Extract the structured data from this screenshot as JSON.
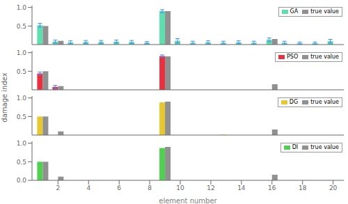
{
  "chart_data": [
    {
      "type": "bar",
      "x": [
        1,
        2,
        3,
        4,
        5,
        6,
        7,
        8,
        9,
        10,
        11,
        12,
        13,
        14,
        15,
        16,
        17,
        18,
        19,
        20
      ],
      "series": [
        {
          "name": "GA",
          "color": "#5fdfb0",
          "values": [
            0.52,
            0.08,
            0.06,
            0.07,
            0.07,
            0.08,
            0.07,
            0.05,
            0.9,
            0.1,
            0.05,
            0.06,
            0.05,
            0.06,
            0.05,
            0.13,
            0.05,
            0.04,
            0.04,
            0.09
          ],
          "errors": [
            0.05,
            0.04,
            0.04,
            0.04,
            0.04,
            0.04,
            0.04,
            0.03,
            0.04,
            0.06,
            0.04,
            0.04,
            0.04,
            0.04,
            0.04,
            0.05,
            0.04,
            0.03,
            0.03,
            0.05
          ]
        },
        {
          "name": "true value",
          "color": "#909090",
          "values": [
            0.5,
            0.1,
            0,
            0,
            0,
            0,
            0,
            0,
            0.9,
            0,
            0,
            0,
            0,
            0,
            0,
            0.15,
            0,
            0,
            0,
            0
          ]
        }
      ],
      "xlim": [
        0.3,
        20.7
      ],
      "xticks": [
        2,
        4,
        6,
        8,
        10,
        12,
        14,
        16,
        18,
        20
      ],
      "ylim": [
        0,
        1.05
      ],
      "yticks": [
        {
          "value": 0,
          "label": "0.0"
        },
        {
          "value": 0.5,
          "label": "0.5"
        },
        {
          "value": 1,
          "label": "1.0"
        }
      ],
      "tick_labels": "y",
      "grid": false,
      "legend": "upper right"
    },
    {
      "type": "bar",
      "x": [
        1,
        2,
        3,
        4,
        5,
        6,
        7,
        8,
        9,
        10,
        11,
        12,
        13,
        14,
        15,
        16,
        17,
        18,
        19,
        20
      ],
      "series": [
        {
          "name": "PSO",
          "color": "#e83040",
          "values": [
            0.44,
            0.08,
            0.0,
            0.0,
            0.0,
            0.0,
            0.0,
            0.0,
            0.91,
            0.0,
            0.0,
            0.0,
            0.0,
            0.0,
            0.0,
            0.0,
            0.0,
            0.0,
            0.0,
            0.0
          ],
          "errors": [
            0.04,
            0.04,
            0.0,
            0.0,
            0.0,
            0.0,
            0.0,
            0.0,
            0.03,
            0.0,
            0.0,
            0.0,
            0.0,
            0.0,
            0.0,
            0.0,
            0.0,
            0.0,
            0.0,
            0.0
          ]
        },
        {
          "name": "true value",
          "color": "#909090",
          "values": [
            0.5,
            0.1,
            0,
            0,
            0,
            0,
            0,
            0,
            0.9,
            0,
            0,
            0,
            0,
            0,
            0,
            0.15,
            0,
            0,
            0,
            0
          ]
        }
      ],
      "xlim": [
        0.3,
        20.7
      ],
      "xticks": [
        2,
        4,
        6,
        8,
        10,
        12,
        14,
        16,
        18,
        20
      ],
      "ylim": [
        0,
        1.05
      ],
      "yticks": [
        {
          "value": 0,
          "label": "0.0"
        },
        {
          "value": 0.5,
          "label": "0.5"
        },
        {
          "value": 1,
          "label": "1.0"
        }
      ],
      "tick_labels": "y",
      "grid": false,
      "legend": "upper right"
    },
    {
      "type": "bar",
      "x": [
        1,
        2,
        3,
        4,
        5,
        6,
        7,
        8,
        9,
        10,
        11,
        12,
        13,
        14,
        15,
        16,
        17,
        18,
        19,
        20
      ],
      "series": [
        {
          "name": "DG",
          "color": "#e8c830",
          "values": [
            0.5,
            0.0,
            0.0,
            0.0,
            0.0,
            0.0,
            0.0,
            0.0,
            0.88,
            0.0,
            0.0,
            0.0,
            0.01,
            0.0,
            0.0,
            0.0,
            0.0,
            0.0,
            0.0,
            0.0
          ]
        },
        {
          "name": "true value",
          "color": "#909090",
          "values": [
            0.5,
            0.1,
            0,
            0,
            0,
            0,
            0,
            0,
            0.9,
            0,
            0,
            0,
            0,
            0,
            0,
            0.15,
            0,
            0,
            0,
            0
          ]
        }
      ],
      "xlim": [
        0.3,
        20.7
      ],
      "xticks": [
        2,
        4,
        6,
        8,
        10,
        12,
        14,
        16,
        18,
        20
      ],
      "ylim": [
        0,
        1.05
      ],
      "yticks": [
        {
          "value": 0,
          "label": "0.0"
        },
        {
          "value": 0.5,
          "label": "0.5"
        },
        {
          "value": 1,
          "label": "1.0"
        }
      ],
      "tick_labels": "y",
      "grid": false,
      "legend": "upper right"
    },
    {
      "type": "bar",
      "x": [
        1,
        2,
        3,
        4,
        5,
        6,
        7,
        8,
        9,
        10,
        11,
        12,
        13,
        14,
        15,
        16,
        17,
        18,
        19,
        20
      ],
      "series": [
        {
          "name": "DI",
          "color": "#50d050",
          "values": [
            0.5,
            0.0,
            0.0,
            0.0,
            0.0,
            0.0,
            0.0,
            0.0,
            0.87,
            0.0,
            0.0,
            0.0,
            0.0,
            0.0,
            0.0,
            0.0,
            0.0,
            0.0,
            0.0,
            0.0
          ]
        },
        {
          "name": "true value",
          "color": "#909090",
          "values": [
            0.5,
            0.1,
            0,
            0,
            0,
            0,
            0,
            0,
            0.9,
            0,
            0,
            0,
            0,
            0,
            0,
            0.15,
            0,
            0,
            0,
            0
          ]
        }
      ],
      "xlim": [
        0.3,
        20.7
      ],
      "xticks": [
        2,
        4,
        6,
        8,
        10,
        12,
        14,
        16,
        18,
        20
      ],
      "ylim": [
        0,
        1.05
      ],
      "yticks": [
        {
          "value": 0,
          "label": "0.0"
        },
        {
          "value": 0.5,
          "label": "0.5"
        },
        {
          "value": 1,
          "label": "1.0"
        }
      ],
      "xlabel": "element number",
      "ylabel": "damage index",
      "grid": false,
      "legend": "upper right"
    }
  ]
}
